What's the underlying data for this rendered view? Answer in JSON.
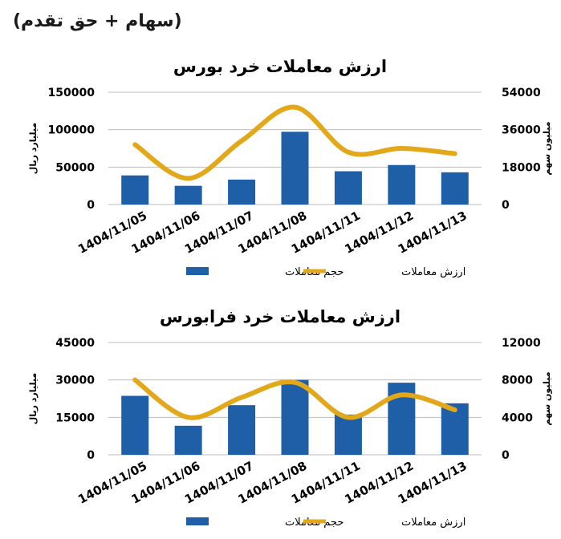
{
  "header": "(سهام + حق تقدم)",
  "chart_data": [
    {
      "type": "bar",
      "title": "ارزش معاملات خرد بورس",
      "categories": [
        "1404/11/05",
        "1404/11/06",
        "1404/11/07",
        "1404/11/08",
        "1404/11/11",
        "1404/11/12",
        "1404/11/13"
      ],
      "series": [
        {
          "name": "حجم معاملات",
          "type": "bar",
          "axis": "right",
          "color": "#1f5fa8",
          "values": [
            14000,
            9000,
            12000,
            35000,
            16000,
            19000,
            15500
          ]
        },
        {
          "name": "ارزش معاملات",
          "type": "line",
          "axis": "left",
          "color": "#e3a81a",
          "values": [
            80000,
            35000,
            85000,
            130000,
            70000,
            75000,
            68000
          ]
        }
      ],
      "y_left": {
        "label": "میلیارد ریال",
        "ylim": [
          0,
          150000
        ],
        "ticks": [
          "0",
          "50000",
          "100000",
          "150000"
        ]
      },
      "y_right": {
        "label": "میلیون سهم",
        "ylim": [
          0,
          54000
        ],
        "ticks": [
          "0",
          "18000",
          "36000",
          "54000"
        ]
      },
      "legend": "bottom",
      "grid": true
    },
    {
      "type": "bar",
      "title": "ارزش معاملات خرد فرابورس",
      "categories": [
        "1404/11/05",
        "1404/11/06",
        "1404/11/07",
        "1404/11/08",
        "1404/11/11",
        "1404/11/12",
        "1404/11/13"
      ],
      "series": [
        {
          "name": "حجم معاملات",
          "type": "bar",
          "axis": "right",
          "color": "#1f5fa8",
          "values": [
            6300,
            3100,
            5300,
            8000,
            4300,
            7700,
            5500
          ]
        },
        {
          "name": "ارزش معاملات",
          "type": "line",
          "axis": "left",
          "color": "#e3a81a",
          "values": [
            30000,
            15000,
            23000,
            29000,
            15000,
            24000,
            18000
          ]
        }
      ],
      "y_left": {
        "label": "میلیارد ریال",
        "ylim": [
          0,
          45000
        ],
        "ticks": [
          "0",
          "15000",
          "30000",
          "45000"
        ]
      },
      "y_right": {
        "label": "میلیون سهم",
        "ylim": [
          0,
          12000
        ],
        "ticks": [
          "0",
          "4000",
          "8000",
          "12000"
        ]
      },
      "legend": "bottom",
      "grid": true
    }
  ]
}
